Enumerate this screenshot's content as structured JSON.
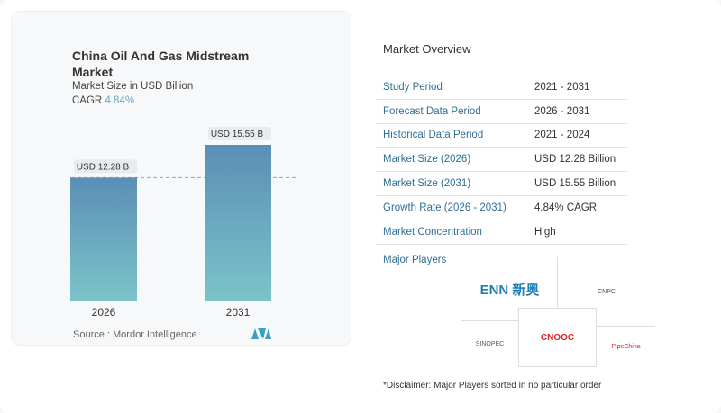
{
  "chart_data": {
    "type": "bar",
    "title": "China Oil And Gas Midstream Market",
    "subtitle": "Market Size in USD Billion",
    "cagr_label": "CAGR",
    "cagr_value": "4.84%",
    "categories": [
      "2026",
      "2031"
    ],
    "values": [
      12.28,
      15.55
    ],
    "data_labels": [
      "USD 12.28 B",
      "USD 15.55 B"
    ],
    "ylim": [
      0,
      15.55
    ],
    "grid": false,
    "colors": {
      "bar_top": "#5b8fb5",
      "bar_bottom": "#7cc3c9"
    }
  },
  "source": "Source :  Mordor Intelligence",
  "overview": {
    "title": "Market Overview",
    "rows": [
      {
        "k": "Study Period",
        "v": "2021 - 2031"
      },
      {
        "k": "Forecast Data Period",
        "v": "2026 - 2031"
      },
      {
        "k": "Historical Data Period",
        "v": "2021 - 2024"
      },
      {
        "k": "Market Size (2026)",
        "v": "USD 12.28 Billion"
      },
      {
        "k": "Market Size (2031)",
        "v": "USD 15.55 Billion"
      },
      {
        "k": "Growth Rate (2026 - 2031)",
        "v": "4.84% CAGR"
      },
      {
        "k": "Market Concentration",
        "v": "High"
      }
    ]
  },
  "players": {
    "title": "Major Players",
    "logos": [
      "ENN 新奥",
      "CNPC",
      "SINOPEC",
      "CNOOC",
      "PipeChina"
    ]
  },
  "disclaimer": "*Disclaimer: Major Players sorted in no particular order"
}
